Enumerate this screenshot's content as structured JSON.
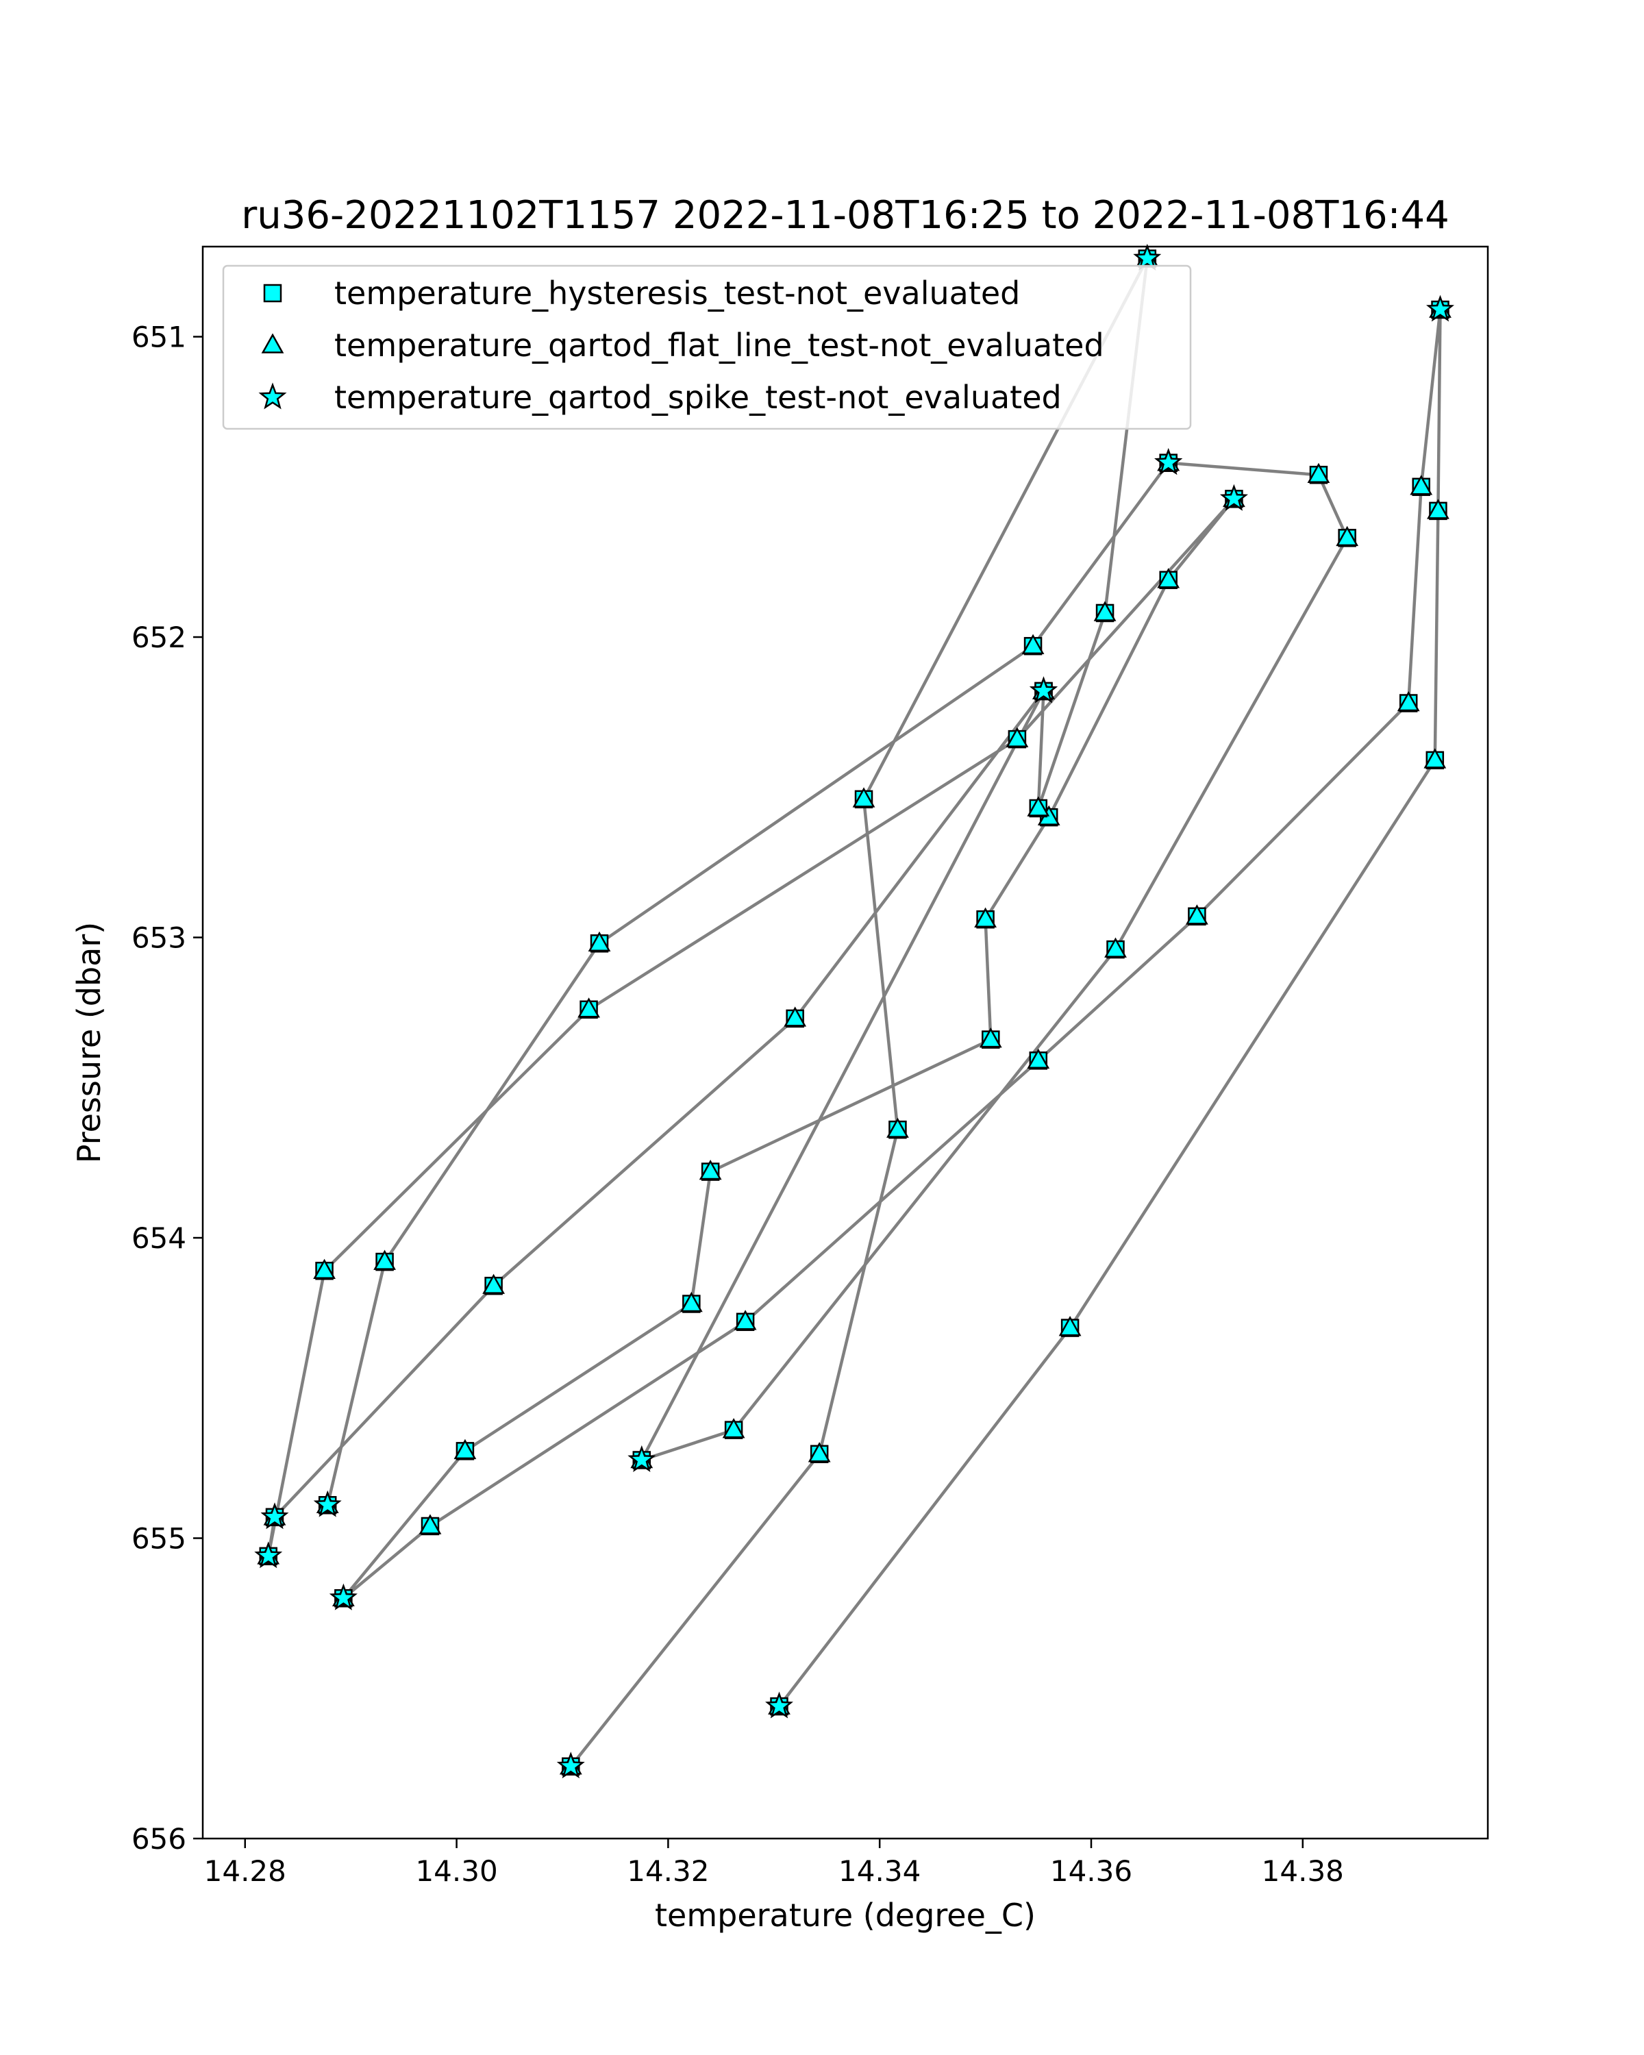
{
  "chart_data": {
    "type": "line",
    "title": "ru36-20221102T1157 2022-11-08T16:25 to 2022-11-08T16:44",
    "xlabel": "temperature (degree_C)",
    "ylabel": "Pressure (dbar)",
    "xlim": [
      14.276,
      14.3975
    ],
    "ylim": [
      656.0,
      650.7
    ],
    "y_inverted": true,
    "grid": false,
    "legend_placement": "upper-left",
    "xticks": [
      {
        "value": 14.28,
        "label": "14.28"
      },
      {
        "value": 14.3,
        "label": "14.30"
      },
      {
        "value": 14.32,
        "label": "14.32"
      },
      {
        "value": 14.34,
        "label": "14.34"
      },
      {
        "value": 14.36,
        "label": "14.36"
      },
      {
        "value": 14.38,
        "label": "14.38"
      }
    ],
    "yticks": [
      {
        "value": 651,
        "label": "651"
      },
      {
        "value": 652,
        "label": "652"
      },
      {
        "value": 653,
        "label": "653"
      },
      {
        "value": 654,
        "label": "654"
      },
      {
        "value": 655,
        "label": "655"
      },
      {
        "value": 656,
        "label": "656"
      }
    ],
    "colors": {
      "line": "#808080",
      "marker_fill": "#00ffff",
      "marker_edge": "#000000",
      "axes": "#000000"
    },
    "legend": [
      {
        "label": "temperature_hysteresis_test-not_evaluated",
        "marker": "square"
      },
      {
        "label": "temperature_qartod_flat_line_test-not_evaluated",
        "marker": "triangle"
      },
      {
        "label": "temperature_qartod_spike_test-not_evaluated",
        "marker": "star"
      }
    ],
    "points": [
      {
        "x": 14.3305,
        "y": 655.56,
        "spike": true
      },
      {
        "x": 14.358,
        "y": 654.3
      },
      {
        "x": 14.3925,
        "y": 652.41
      },
      {
        "x": 14.3928,
        "y": 651.58
      },
      {
        "x": 14.393,
        "y": 650.91,
        "spike": true
      },
      {
        "x": 14.3912,
        "y": 651.5
      },
      {
        "x": 14.39,
        "y": 652.22
      },
      {
        "x": 14.37,
        "y": 652.93
      },
      {
        "x": 14.355,
        "y": 653.41
      },
      {
        "x": 14.3273,
        "y": 654.28
      },
      {
        "x": 14.2975,
        "y": 654.96
      },
      {
        "x": 14.2893,
        "y": 655.2,
        "spike": true
      },
      {
        "x": 14.3008,
        "y": 654.71
      },
      {
        "x": 14.3222,
        "y": 654.22
      },
      {
        "x": 14.324,
        "y": 653.78
      },
      {
        "x": 14.3505,
        "y": 653.34
      },
      {
        "x": 14.35,
        "y": 652.94
      },
      {
        "x": 14.356,
        "y": 652.6
      },
      {
        "x": 14.3673,
        "y": 651.81
      },
      {
        "x": 14.3735,
        "y": 651.54,
        "spike": true
      },
      {
        "x": 14.353,
        "y": 652.34
      },
      {
        "x": 14.3125,
        "y": 653.24
      },
      {
        "x": 14.2875,
        "y": 654.11
      },
      {
        "x": 14.2822,
        "y": 655.06,
        "spike": true
      },
      {
        "x": 14.2828,
        "y": 654.93,
        "spike": true
      },
      {
        "x": 14.3035,
        "y": 654.16
      },
      {
        "x": 14.332,
        "y": 653.27
      },
      {
        "x": 14.3555,
        "y": 652.18,
        "spike": true
      },
      {
        "x": 14.355,
        "y": 652.57
      },
      {
        "x": 14.3613,
        "y": 651.92
      },
      {
        "x": 14.3653,
        "y": 650.74,
        "spike": true
      },
      {
        "x": 14.3385,
        "y": 652.54
      },
      {
        "x": 14.3417,
        "y": 653.64
      },
      {
        "x": 14.3343,
        "y": 654.72
      },
      {
        "x": 14.3108,
        "y": 655.76,
        "spike": true
      }
    ],
    "extra_segments": [
      {
        "points": [
          {
            "x": 14.3673,
            "y": 651.42,
            "spike": true
          },
          {
            "x": 14.3815,
            "y": 651.46
          },
          {
            "x": 14.3842,
            "y": 651.67
          },
          {
            "x": 14.3623,
            "y": 653.04
          },
          {
            "x": 14.3262,
            "y": 654.64
          },
          {
            "x": 14.3175,
            "y": 654.74,
            "spike": true
          },
          {
            "x": 14.3555,
            "y": 652.18,
            "spike": true
          }
        ]
      },
      {
        "points": [
          {
            "x": 14.3673,
            "y": 651.42,
            "spike": true
          },
          {
            "x": 14.3545,
            "y": 652.03
          },
          {
            "x": 14.3135,
            "y": 653.02
          },
          {
            "x": 14.2932,
            "y": 654.08
          },
          {
            "x": 14.2878,
            "y": 654.89,
            "spike": true
          }
        ]
      }
    ]
  }
}
